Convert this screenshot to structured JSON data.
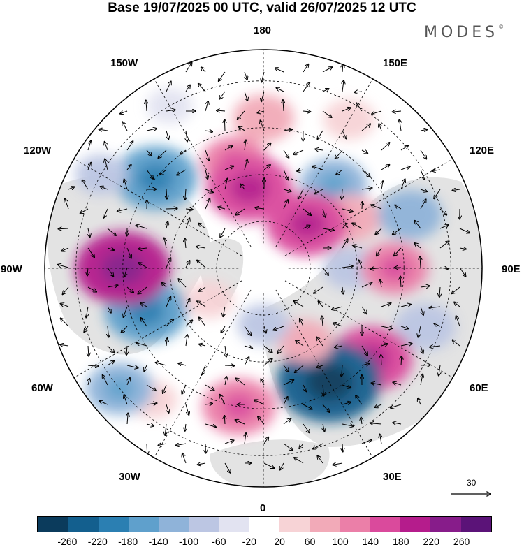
{
  "title": "Base 19/07/2025 00 UTC, valid 26/07/2025 12 UTC",
  "brand": "MODES",
  "brand_mark": "©",
  "longitude_labels": [
    "180",
    "150E",
    "120E",
    "90E",
    "60E",
    "30E",
    "0",
    "30W",
    "60W",
    "90W",
    "120W",
    "150W"
  ],
  "vector_reference": "30",
  "colorbar": {
    "levels": [
      "-260",
      "-220",
      "-180",
      "-140",
      "-100",
      "-60",
      "-20",
      "20",
      "60",
      "100",
      "140",
      "180",
      "220",
      "260"
    ],
    "colors": [
      "#0b3b5c",
      "#135f8e",
      "#2b7fb2",
      "#5fa0cc",
      "#8fb3d9",
      "#bcc6e3",
      "#e2e3f1",
      "#ffffff",
      "#f7d3d6",
      "#f2aab8",
      "#eb7fa8",
      "#da4a9c",
      "#b51c8c",
      "#871c8a",
      "#5b1378"
    ]
  },
  "colors": {
    "land": "#e3e3e3",
    "ocean": "#ffffff",
    "graticule": "#000000"
  },
  "anomalies": [
    {
      "lon": 180,
      "lat": 42,
      "value": 90
    },
    {
      "lon": 150,
      "lat": 35,
      "value": 60
    },
    {
      "lon": -165,
      "lat": 55,
      "value": 110
    },
    {
      "lon": -170,
      "lat": 64,
      "value": 170
    },
    {
      "lon": 140,
      "lat": 55,
      "value": -110
    },
    {
      "lon": 120,
      "lat": 58,
      "value": 90
    },
    {
      "lon": 110,
      "lat": 40,
      "value": -100
    },
    {
      "lon": 135,
      "lat": 70,
      "value": 160
    },
    {
      "lon": 90,
      "lat": 62,
      "value": -70
    },
    {
      "lon": 90,
      "lat": 48,
      "value": 110
    },
    {
      "lon": 70,
      "lat": 35,
      "value": -90
    },
    {
      "lon": 50,
      "lat": 45,
      "value": 160
    },
    {
      "lon": 30,
      "lat": 48,
      "value": -230
    },
    {
      "lon": 30,
      "lat": 63,
      "value": 70
    },
    {
      "lon": 0,
      "lat": 72,
      "value": -60
    },
    {
      "lon": -10,
      "lat": 45,
      "value": 130
    },
    {
      "lon": -40,
      "lat": 35,
      "value": 50
    },
    {
      "lon": -50,
      "lat": 30,
      "value": -110
    },
    {
      "lon": -70,
      "lat": 50,
      "value": -160
    },
    {
      "lon": -90,
      "lat": 45,
      "value": 200
    },
    {
      "lon": -130,
      "lat": 45,
      "value": -160
    },
    {
      "lon": -120,
      "lat": 30,
      "value": -60
    },
    {
      "lon": -150,
      "lat": 30,
      "value": -40
    },
    {
      "lon": -60,
      "lat": 70,
      "value": 50
    }
  ]
}
